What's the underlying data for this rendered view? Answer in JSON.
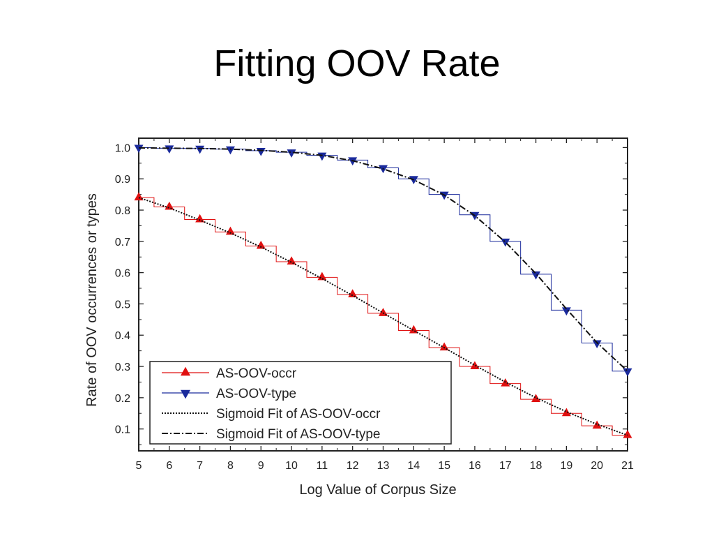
{
  "slide": {
    "title": "Fitting OOV Rate"
  },
  "colors": {
    "occr": "#e01010",
    "type": "#1a2a9c",
    "fit": "#111111"
  },
  "chart_data": {
    "type": "line",
    "xlabel": "Log Value of Corpus Size",
    "ylabel": "Rate of OOV occurrences or types",
    "xlim": [
      5,
      21
    ],
    "ylim": [
      0.03,
      1.03
    ],
    "x_ticks": [
      5,
      6,
      7,
      8,
      9,
      10,
      11,
      12,
      13,
      14,
      15,
      16,
      17,
      18,
      19,
      20,
      21
    ],
    "y_ticks": [
      0.1,
      0.2,
      0.3,
      0.4,
      0.5,
      0.6,
      0.7,
      0.8,
      0.9,
      1.0
    ],
    "y_tick_labels": [
      "0.1",
      "0.2",
      "0.3",
      "0.4",
      "0.5",
      "0.6",
      "0.7",
      "0.8",
      "0.9",
      "1.0"
    ],
    "legend_position": "bottom-left",
    "x": [
      5,
      6,
      7,
      8,
      9,
      10,
      11,
      12,
      13,
      14,
      15,
      16,
      17,
      18,
      19,
      20,
      21
    ],
    "series": [
      {
        "name": "AS-OOV-occr",
        "style": "step-marker",
        "marker": "triangle-up",
        "color": "#e01010",
        "values": [
          0.84,
          0.81,
          0.77,
          0.73,
          0.685,
          0.635,
          0.585,
          0.53,
          0.47,
          0.415,
          0.36,
          0.3,
          0.245,
          0.195,
          0.15,
          0.11,
          0.08
        ]
      },
      {
        "name": "AS-OOV-type",
        "style": "step-marker",
        "marker": "triangle-down",
        "color": "#1a2a9c",
        "values": [
          1.0,
          0.998,
          0.997,
          0.995,
          0.99,
          0.985,
          0.975,
          0.96,
          0.935,
          0.9,
          0.85,
          0.785,
          0.7,
          0.595,
          0.48,
          0.375,
          0.285
        ]
      },
      {
        "name": "Sigmoid Fit of AS-OOV-occr",
        "style": "dotted",
        "color": "#111111",
        "values": [
          0.84,
          0.807,
          0.768,
          0.727,
          0.682,
          0.633,
          0.581,
          0.527,
          0.471,
          0.415,
          0.36,
          0.304,
          0.25,
          0.2,
          0.155,
          0.115,
          0.08
        ]
      },
      {
        "name": "Sigmoid Fit of AS-OOV-type",
        "style": "dash-dot",
        "color": "#111111",
        "values": [
          0.999,
          0.998,
          0.997,
          0.995,
          0.991,
          0.985,
          0.975,
          0.958,
          0.932,
          0.897,
          0.848,
          0.782,
          0.698,
          0.597,
          0.484,
          0.376,
          0.285
        ]
      }
    ]
  }
}
